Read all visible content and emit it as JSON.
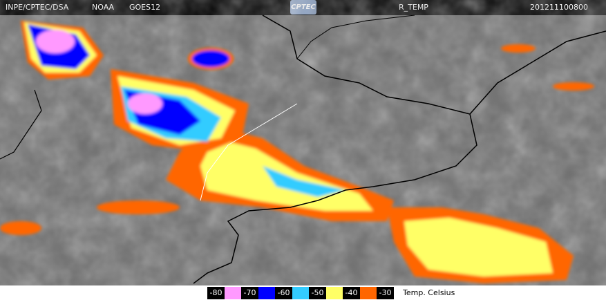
{
  "header": {
    "agency": "INPE/CPTEC/DSA",
    "operator": "NOAA",
    "satellite": "GOES12",
    "logo": "CPTEC",
    "product": "R_TEMP",
    "timestamp": "201211100800"
  },
  "legend": {
    "items": [
      {
        "value": -80,
        "color": "#ff99ff"
      },
      {
        "value": -70,
        "color": "#0000ff"
      },
      {
        "value": -60,
        "color": "#33ccff"
      },
      {
        "value": -50,
        "color": "#ffff66"
      },
      {
        "value": -40,
        "color": "#ff6600"
      },
      {
        "value": -30
      }
    ],
    "unit": "Temp. Celsius"
  }
}
